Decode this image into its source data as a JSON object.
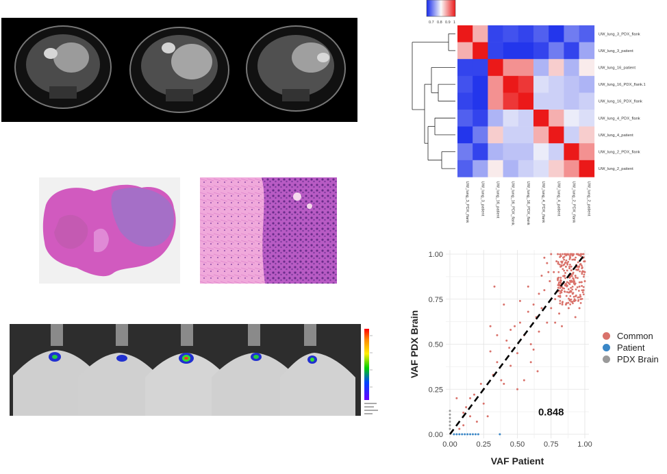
{
  "heatmap": {
    "colorscale": {
      "ticks": [
        "0.7",
        "0.8",
        "0.9",
        "1"
      ]
    },
    "rows": [
      "UW_lung_3_PDX_flank",
      "UW_lung_3_patient",
      "UW_lung_16_patient",
      "UW_lung_16_PDX_flank.1",
      "UW_lung_16_PDX_flank",
      "UW_lung_4_PDX_flank",
      "UW_lung_4_patient",
      "UW_lung_2_PDX_flank",
      "UW_lung_2_patient"
    ],
    "cols": [
      "UW_lung_3_PDX_flank",
      "UW_lung_3_patient",
      "UW_lung_16_patient",
      "UW_lung_16_PDX_flank.1",
      "UW_lung_16_PDX_flank",
      "UW_lung_4_PDX_flank",
      "UW_lung_4_patient",
      "UW_lung_2_PDX_flank",
      "UW_lung_2_patient"
    ],
    "values": [
      [
        1.0,
        0.9,
        0.72,
        0.73,
        0.72,
        0.74,
        0.71,
        0.76,
        0.74
      ],
      [
        0.9,
        1.0,
        0.72,
        0.71,
        0.71,
        0.72,
        0.76,
        0.72,
        0.79
      ],
      [
        0.72,
        0.72,
        1.0,
        0.92,
        0.92,
        0.8,
        0.88,
        0.8,
        0.86
      ],
      [
        0.73,
        0.71,
        0.92,
        1.0,
        0.98,
        0.83,
        0.82,
        0.81,
        0.8
      ],
      [
        0.72,
        0.71,
        0.92,
        0.98,
        1.0,
        0.82,
        0.82,
        0.81,
        0.82
      ],
      [
        0.74,
        0.72,
        0.8,
        0.83,
        0.82,
        1.0,
        0.9,
        0.84,
        0.83
      ],
      [
        0.71,
        0.76,
        0.88,
        0.82,
        0.82,
        0.9,
        1.0,
        0.82,
        0.88
      ],
      [
        0.76,
        0.72,
        0.8,
        0.81,
        0.81,
        0.84,
        0.82,
        1.0,
        0.92
      ],
      [
        0.74,
        0.79,
        0.86,
        0.8,
        0.82,
        0.83,
        0.88,
        0.92,
        1.0
      ]
    ]
  },
  "scatter": {
    "xlabel": "VAF Patient",
    "ylabel": "VAF PDX Brain",
    "ticks": [
      "0.00",
      "0.25",
      "0.50",
      "0.75",
      "1.00"
    ],
    "annotation": "0.848",
    "legend": [
      {
        "label": "Common",
        "color": "#d9726b"
      },
      {
        "label": "Patient",
        "color": "#3a87c7"
      },
      {
        "label": "PDX Brain",
        "color": "#9a9a9a"
      }
    ]
  },
  "chart_data": [
    {
      "type": "heatmap",
      "title": "",
      "rows": [
        "UW_lung_3_PDX_flank",
        "UW_lung_3_patient",
        "UW_lung_16_patient",
        "UW_lung_16_PDX_flank.1",
        "UW_lung_16_PDX_flank",
        "UW_lung_4_PDX_flank",
        "UW_lung_4_patient",
        "UW_lung_2_PDX_flank",
        "UW_lung_2_patient"
      ],
      "color_range": [
        0.7,
        1.0
      ]
    },
    {
      "type": "scatter",
      "xlabel": "VAF Patient",
      "ylabel": "VAF PDX Brain",
      "xlim": [
        0,
        1
      ],
      "ylim": [
        0,
        1
      ],
      "annotation": "0.848",
      "series": [
        {
          "name": "Common",
          "points": [
            [
              0.05,
              0.2
            ],
            [
              0.1,
              0.12
            ],
            [
              0.15,
              0.1
            ],
            [
              0.18,
              0.22
            ],
            [
              0.2,
              0.07
            ],
            [
              0.23,
              0.28
            ],
            [
              0.25,
              0.17
            ],
            [
              0.28,
              0.1
            ],
            [
              0.3,
              0.46
            ],
            [
              0.32,
              0.33
            ],
            [
              0.35,
              0.4
            ],
            [
              0.38,
              0.3
            ],
            [
              0.4,
              0.28
            ],
            [
              0.42,
              0.52
            ],
            [
              0.45,
              0.38
            ],
            [
              0.48,
              0.6
            ],
            [
              0.5,
              0.45
            ],
            [
              0.52,
              0.62
            ],
            [
              0.55,
              0.55
            ],
            [
              0.58,
              0.68
            ],
            [
              0.6,
              0.5
            ],
            [
              0.62,
              0.72
            ],
            [
              0.64,
              0.65
            ],
            [
              0.66,
              0.57
            ],
            [
              0.68,
              0.7
            ],
            [
              0.7,
              0.8
            ],
            [
              0.72,
              0.62
            ],
            [
              0.74,
              0.85
            ],
            [
              0.75,
              0.7
            ],
            [
              0.77,
              0.9
            ],
            [
              0.78,
              0.75
            ],
            [
              0.8,
              0.86
            ],
            [
              0.81,
              0.67
            ],
            [
              0.82,
              0.93
            ],
            [
              0.83,
              0.8
            ],
            [
              0.84,
              0.98
            ],
            [
              0.85,
              0.88
            ],
            [
              0.86,
              0.72
            ],
            [
              0.87,
              0.95
            ],
            [
              0.88,
              0.84
            ],
            [
              0.89,
              0.99
            ],
            [
              0.9,
              0.91
            ],
            [
              0.91,
              0.78
            ],
            [
              0.92,
              0.97
            ],
            [
              0.93,
              0.88
            ],
            [
              0.94,
              1.0
            ],
            [
              0.95,
              0.93
            ],
            [
              0.96,
              0.82
            ],
            [
              0.97,
              0.99
            ],
            [
              0.98,
              0.9
            ],
            [
              0.99,
              1.0
            ],
            [
              1.0,
              0.96
            ],
            [
              0.7,
              0.98
            ],
            [
              0.75,
              1.0
            ],
            [
              0.8,
              1.0
            ],
            [
              0.85,
              1.0
            ],
            [
              0.9,
              1.0
            ],
            [
              0.95,
              1.0
            ],
            [
              0.88,
              0.7
            ],
            [
              0.92,
              0.74
            ],
            [
              0.96,
              0.7
            ],
            [
              0.5,
              0.25
            ],
            [
              0.6,
              0.4
            ],
            [
              0.55,
              0.3
            ],
            [
              0.65,
              0.35
            ],
            [
              0.45,
              0.58
            ],
            [
              0.35,
              0.55
            ],
            [
              0.3,
              0.6
            ],
            [
              0.33,
              0.82
            ],
            [
              0.25,
              0.25
            ],
            [
              0.15,
              0.2
            ],
            [
              0.12,
              0.15
            ],
            [
              0.07,
              0.03
            ],
            [
              0.1,
              0.05
            ],
            [
              0.4,
              0.72
            ],
            [
              0.62,
              0.47
            ],
            [
              0.72,
              0.95
            ],
            [
              0.68,
              0.88
            ],
            [
              0.78,
              0.62
            ],
            [
              0.83,
              0.6
            ],
            [
              0.93,
              0.65
            ],
            [
              0.97,
              0.75
            ],
            [
              1.0,
              0.85
            ],
            [
              1.0,
              0.9
            ],
            [
              0.99,
              0.8
            ],
            [
              0.86,
              0.93
            ],
            [
              0.79,
              0.96
            ],
            [
              0.73,
              0.9
            ],
            [
              0.66,
              0.78
            ],
            [
              0.58,
              0.82
            ],
            [
              0.52,
              0.74
            ],
            [
              0.44,
              0.48
            ]
          ]
        },
        {
          "name": "Patient",
          "points": [
            [
              0.03,
              0.0
            ],
            [
              0.05,
              0.0
            ],
            [
              0.07,
              0.0
            ],
            [
              0.09,
              0.0
            ],
            [
              0.11,
              0.0
            ],
            [
              0.13,
              0.0
            ],
            [
              0.15,
              0.0
            ],
            [
              0.17,
              0.0
            ],
            [
              0.19,
              0.0
            ],
            [
              0.21,
              0.0
            ],
            [
              0.37,
              0.0
            ]
          ]
        },
        {
          "name": "PDX Brain",
          "points": [
            [
              0.0,
              0.03
            ],
            [
              0.0,
              0.05
            ],
            [
              0.0,
              0.07
            ],
            [
              0.0,
              0.09
            ],
            [
              0.0,
              0.11
            ],
            [
              0.0,
              0.13
            ]
          ]
        }
      ]
    }
  ]
}
